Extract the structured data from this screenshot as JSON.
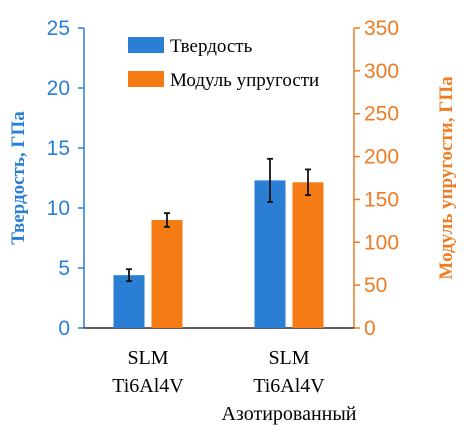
{
  "chart_data": {
    "type": "bar",
    "categories": [
      [
        "SLM",
        "Ti6Al4V"
      ],
      [
        "SLM",
        "Ti6Al4V",
        "Азотированный"
      ]
    ],
    "series": [
      {
        "name": "Твердость",
        "axis": "left",
        "color": "#2a7fd4",
        "values": [
          4.4,
          12.3
        ],
        "errors": [
          0.5,
          1.8
        ]
      },
      {
        "name": "Модуль упругости",
        "axis": "right",
        "color": "#f57c14",
        "values": [
          126,
          170
        ],
        "errors": [
          8,
          15
        ]
      }
    ],
    "ylabel": "Твердость, ГПа",
    "ylim": [
      0,
      25
    ],
    "yticks": [
      0,
      5,
      10,
      15,
      20,
      25
    ],
    "y2label": "Модуль упругости, ГПа",
    "y2lim": [
      0,
      350
    ],
    "y2ticks": [
      0,
      50,
      100,
      150,
      200,
      250,
      300,
      350
    ],
    "legend_position": "top-center",
    "grid": false
  }
}
